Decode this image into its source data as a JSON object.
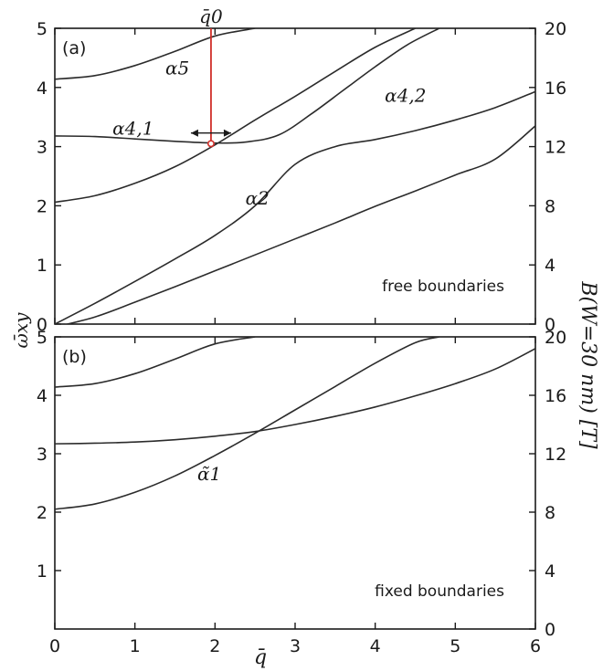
{
  "chart_data": [
    {
      "type": "line",
      "panel_label": "(a)",
      "annotation": "free boundaries",
      "xlim": [
        0,
        6
      ],
      "ylim": [
        0,
        5
      ],
      "yticks": [
        "0",
        "1",
        "2",
        "3",
        "4",
        "5"
      ],
      "right_ylim": [
        0,
        20
      ],
      "right_yticks": [
        "0",
        "4",
        "8",
        "12",
        "16",
        "20"
      ],
      "series": [
        {
          "name": "α5",
          "x": [
            0,
            0.5,
            1,
            1.5,
            2,
            2.5
          ],
          "y": [
            4.14,
            4.2,
            4.37,
            4.61,
            4.87,
            5.0
          ]
        },
        {
          "name": "α4,1",
          "x": [
            0,
            0.5,
            1,
            1.5,
            2,
            2.4,
            2.8,
            3.2,
            3.6,
            4.0,
            4.4,
            4.8
          ],
          "y": [
            3.18,
            3.17,
            3.13,
            3.09,
            3.06,
            3.08,
            3.2,
            3.55,
            3.95,
            4.35,
            4.72,
            5.0
          ]
        },
        {
          "name": "α4,2",
          "x": [
            0,
            0.5,
            1,
            1.5,
            2,
            2.5,
            3,
            3.5,
            4,
            4.5,
            5,
            5.5,
            6
          ],
          "y": [
            0.0,
            0.35,
            0.72,
            1.1,
            1.5,
            2.0,
            2.7,
            3.0,
            3.12,
            3.27,
            3.45,
            3.66,
            3.93
          ]
        },
        {
          "name": "",
          "x": [
            0,
            0.5,
            1,
            1.5,
            2,
            2.5,
            3,
            3.5,
            4,
            4.5
          ],
          "y": [
            2.06,
            2.17,
            2.38,
            2.66,
            3.03,
            3.45,
            3.85,
            4.27,
            4.68,
            5.0
          ]
        },
        {
          "name": "α2",
          "x": [
            0,
            0.5,
            1,
            1.5,
            2,
            2.5,
            3,
            3.5,
            4,
            4.5,
            5,
            5.5,
            6
          ],
          "y": [
            -0.05,
            0.12,
            0.37,
            0.63,
            0.9,
            1.17,
            1.44,
            1.71,
            1.99,
            2.25,
            2.52,
            2.79,
            3.35
          ]
        }
      ],
      "labels": [
        "α5",
        "α4,1",
        "α4,2",
        "α2"
      ],
      "marker": {
        "label": "q̄0",
        "x": 1.95,
        "y": 3.05,
        "color": "#d0302a"
      }
    },
    {
      "type": "line",
      "panel_label": "(b)",
      "annotation": "fixed boundaries",
      "xlim": [
        0,
        6
      ],
      "xticks": [
        "0",
        "1",
        "2",
        "3",
        "4",
        "5",
        "6"
      ],
      "ylim": [
        0,
        5
      ],
      "yticks": [
        "1",
        "2",
        "3",
        "4",
        "5"
      ],
      "right_ylim": [
        0,
        20
      ],
      "right_yticks": [
        "0",
        "4",
        "8",
        "12",
        "16",
        "20"
      ],
      "series": [
        {
          "name": "",
          "x": [
            0,
            0.5,
            1,
            1.5,
            2,
            2.5
          ],
          "y": [
            4.14,
            4.2,
            4.37,
            4.62,
            4.88,
            5.0
          ]
        },
        {
          "name": "",
          "x": [
            0,
            0.5,
            1,
            1.5,
            2,
            2.5,
            3,
            3.5,
            4,
            4.5,
            5,
            5.5,
            6
          ],
          "y": [
            3.17,
            3.18,
            3.2,
            3.24,
            3.3,
            3.38,
            3.5,
            3.64,
            3.8,
            3.99,
            4.2,
            4.45,
            4.8
          ]
        },
        {
          "name": "α̃1",
          "x": [
            0,
            0.5,
            1,
            1.5,
            2,
            2.5,
            3,
            3.5,
            4,
            4.5,
            4.8
          ],
          "y": [
            2.05,
            2.14,
            2.34,
            2.62,
            2.97,
            3.35,
            3.75,
            4.15,
            4.55,
            4.9,
            5.0
          ]
        }
      ],
      "labels": [
        "α̃1"
      ]
    }
  ],
  "axes": {
    "xlabel": "q̄",
    "ylabel": "ω̄xy",
    "right_ylabel": "B(W=30 nm) [T]"
  }
}
